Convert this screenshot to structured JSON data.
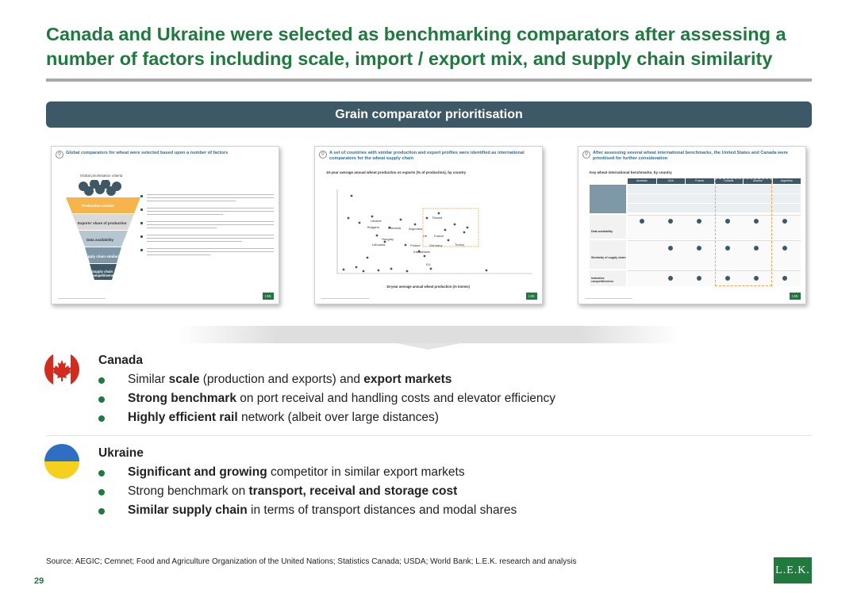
{
  "title": "Canada and Ukraine were selected as benchmarking comparators after assessing a number of factors including scale, import / export mix, and supply chain similarity",
  "banner": "Grain comparator prioritisation",
  "thumbnails": [
    {
      "heading": "Global comparators for wheat were selected based upon a number of factors",
      "funnel_title": "Global prioritisation criteria",
      "funnel_levels": [
        "Production volume",
        "Exports' share of production",
        "Data availability",
        "Supply chain similarity",
        "Supply chain competitiveness"
      ]
    },
    {
      "heading": "A set of countries with similar production and export profiles were identified as international comparators for the wheat supply chain",
      "chart_caption": "10-year average annual wheat production vs exports (% of production), by country",
      "xlabel": "10-year average annual wheat production (m tonnes)",
      "labels": [
        "Ukraine",
        "Bulgaria",
        "Romania",
        "Hungary",
        "Lithuania",
        "Argentina",
        "UK",
        "Poland",
        "France",
        "Germany",
        "Kazakhstan",
        "Turkey",
        "Russia",
        "EU"
      ]
    },
    {
      "heading": "After assessing several wheat international benchmarks, the United States and Canada were prioritised for further consideration",
      "table_caption": "Key wheat international benchmarks, by country",
      "columns": [
        "Australia",
        "USA",
        "France",
        "Canada",
        "Ukraine",
        "Argentina"
      ],
      "rows": [
        "Data availability",
        "Similarity of supply chain",
        "Indicative competitiveness"
      ]
    }
  ],
  "canada": {
    "name": "Canada",
    "b1": {
      "b": "scale",
      "a": "Similar ",
      "c": " (production and exports) and ",
      "d": "export markets"
    },
    "b2": {
      "b": "Strong benchmark",
      "c": " on port receival and handling costs and elevator efficiency"
    },
    "b3": {
      "b": "Highly efficient rail",
      "c": " network (albeit over large distances)"
    }
  },
  "ukraine": {
    "name": "Ukraine",
    "b1": {
      "b": "Significant and growing",
      "c": " competitor in similar export markets"
    },
    "b2": {
      "a": "Strong benchmark on ",
      "b": "transport, receival and storage cost"
    },
    "b3": {
      "b": "Similar supply chain",
      "c": " in terms of transport distances and modal shares"
    }
  },
  "source": "Source: AEGIC; Cemnet; Food and Agriculture Organization of the United Nations; Statistics Canada; USDA; World Bank; L.E.K. research and analysis",
  "page_number": "29",
  "logo_text": "L.E.K.",
  "colors": {
    "title_green": "#1f7a3e",
    "banner": "#3d5866",
    "bullet": "#1f7a3e",
    "canada_red": "#d52b1e",
    "ukraine_blue": "#2f6fc1",
    "ukraine_yellow": "#f5d01c"
  }
}
